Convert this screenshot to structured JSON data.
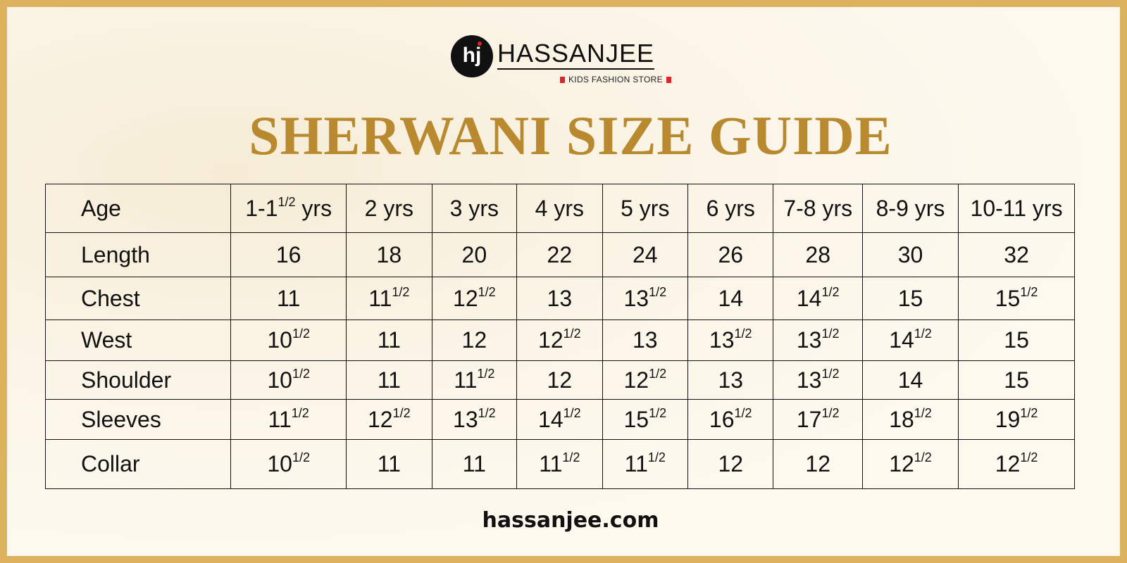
{
  "brand": {
    "logo_mark": "hj",
    "name": "HASSANJEE",
    "tagline": "KIDS FASHION STORE"
  },
  "title": "SHERWANI SIZE GUIDE",
  "table": {
    "rows": [
      {
        "label": "Age",
        "cells": [
          {
            "n": "1-1",
            "f": "1/2",
            "s": " yrs"
          },
          {
            "n": "2 yrs"
          },
          {
            "n": "3 yrs"
          },
          {
            "n": "4 yrs"
          },
          {
            "n": "5 yrs"
          },
          {
            "n": "6 yrs"
          },
          {
            "n": "7-8 yrs"
          },
          {
            "n": "8-9 yrs"
          },
          {
            "n": "10-11 yrs"
          }
        ]
      },
      {
        "label": "Length",
        "cells": [
          {
            "n": "16"
          },
          {
            "n": "18"
          },
          {
            "n": "20"
          },
          {
            "n": "22"
          },
          {
            "n": "24"
          },
          {
            "n": "26"
          },
          {
            "n": "28"
          },
          {
            "n": "30"
          },
          {
            "n": "32"
          }
        ]
      },
      {
        "label": "Chest",
        "cells": [
          {
            "n": "11"
          },
          {
            "n": "11",
            "f": "1/2"
          },
          {
            "n": "12",
            "f": "1/2"
          },
          {
            "n": "13"
          },
          {
            "n": "13",
            "f": "1/2"
          },
          {
            "n": "14"
          },
          {
            "n": "14",
            "f": "1/2"
          },
          {
            "n": "15"
          },
          {
            "n": "15",
            "f": "1/2"
          }
        ]
      },
      {
        "label": "West",
        "cells": [
          {
            "n": "10",
            "f": "1/2"
          },
          {
            "n": "11"
          },
          {
            "n": "12"
          },
          {
            "n": "12",
            "f": "1/2"
          },
          {
            "n": "13"
          },
          {
            "n": "13",
            "f": "1/2"
          },
          {
            "n": "13",
            "f": "1/2"
          },
          {
            "n": "14",
            "f": "1/2"
          },
          {
            "n": "15"
          }
        ]
      },
      {
        "label": "Shoulder",
        "cells": [
          {
            "n": "10",
            "f": "1/2"
          },
          {
            "n": "11"
          },
          {
            "n": "11",
            "f": "1/2"
          },
          {
            "n": "12"
          },
          {
            "n": "12",
            "f": "1/2"
          },
          {
            "n": "13"
          },
          {
            "n": "13",
            "f": "1/2"
          },
          {
            "n": "14"
          },
          {
            "n": "15"
          }
        ]
      },
      {
        "label": "Sleeves",
        "cells": [
          {
            "n": "11",
            "f": "1/2"
          },
          {
            "n": "12",
            "f": "1/2"
          },
          {
            "n": "13",
            "f": "1/2"
          },
          {
            "n": "14",
            "f": "1/2"
          },
          {
            "n": "15",
            "f": "1/2"
          },
          {
            "n": "16",
            "f": "1/2"
          },
          {
            "n": "17",
            "f": "1/2"
          },
          {
            "n": "18",
            "f": "1/2"
          },
          {
            "n": "19",
            "f": "1/2"
          }
        ]
      },
      {
        "label": "Collar",
        "cells": [
          {
            "n": "10",
            "f": "1/2"
          },
          {
            "n": "11"
          },
          {
            "n": "11"
          },
          {
            "n": "11",
            "f": "1/2"
          },
          {
            "n": "11",
            "f": "1/2"
          },
          {
            "n": "12"
          },
          {
            "n": "12"
          },
          {
            "n": "12",
            "f": "1/2"
          },
          {
            "n": "12",
            "f": "1/2"
          }
        ]
      }
    ]
  },
  "footer": {
    "url": "hassanjee.com"
  },
  "colors": {
    "border": "#dcb25c",
    "title": "#b8892e",
    "accent": "#e0222a"
  }
}
